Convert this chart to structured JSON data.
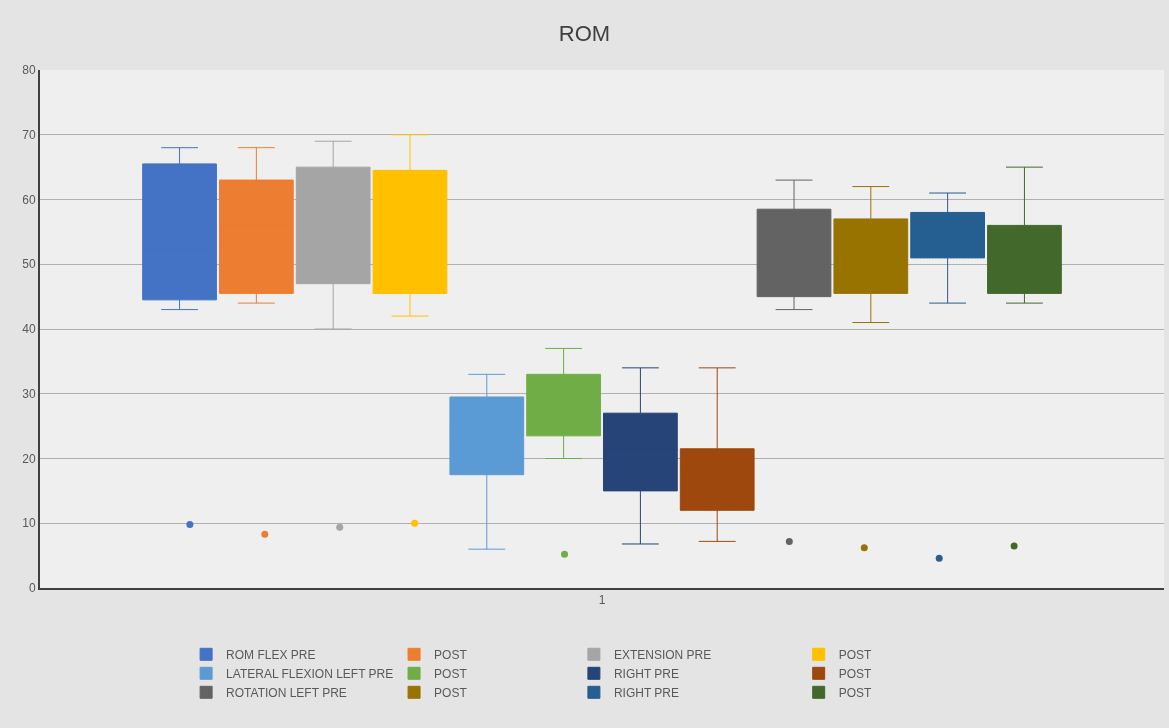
{
  "chart_data": {
    "type": "box",
    "title": "ROM",
    "categories": [
      "1"
    ],
    "ylim": [
      0,
      80
    ],
    "yticks": [
      0,
      10,
      20,
      30,
      40,
      50,
      60,
      70,
      80
    ],
    "grid": "y",
    "legend": "bottom",
    "series": [
      {
        "name": "ROM FLEX PRE",
        "color": "#4472c4",
        "boxes": [
          {
            "low": 43,
            "q1": 44.5,
            "median": 51,
            "q3": 65.5,
            "high": 68,
            "mean": 52.3,
            "outliers": [
              9.8
            ]
          }
        ]
      },
      {
        "name": "POST",
        "color": "#ed7d31",
        "boxes": [
          {
            "low": 44,
            "q1": 45.5,
            "median": 56,
            "q3": 63,
            "high": 68,
            "mean": 53,
            "outliers": [
              8.3
            ]
          }
        ]
      },
      {
        "name": "EXTENSION PRE",
        "color": "#a5a5a5",
        "boxes": [
          {
            "low": 40,
            "q1": 47,
            "median": 54.5,
            "q3": 65,
            "high": 69,
            "mean": 53.7,
            "outliers": [
              9.4
            ]
          }
        ]
      },
      {
        "name": "POST",
        "color": "#ffc000",
        "boxes": [
          {
            "low": 42,
            "q1": 45.5,
            "median": 56.3,
            "q3": 64.5,
            "high": 70,
            "mean": 53.4,
            "outliers": [
              10
            ]
          }
        ]
      },
      {
        "name": "LATERAL FLEXION LEFT PRE",
        "color": "#5b9bd5",
        "boxes": [
          {
            "low": 6,
            "q1": 17.5,
            "median": 24.8,
            "q3": 29.5,
            "high": 33,
            "mean": 23.5
          }
        ]
      },
      {
        "name": "POST",
        "color": "#70ad47",
        "boxes": [
          {
            "low": 20,
            "q1": 23.5,
            "median": 28,
            "q3": 33,
            "high": 37,
            "mean": 27.3,
            "outliers": [
              5.2
            ]
          }
        ]
      },
      {
        "name": "RIGHT PRE",
        "color": "#264478",
        "boxes": [
          {
            "low": 6.8,
            "q1": 15,
            "median": 21.3,
            "q3": 27,
            "high": 34,
            "mean": 21.5
          }
        ]
      },
      {
        "name": "POST",
        "color": "#9e480e",
        "boxes": [
          {
            "low": 7.2,
            "q1": 12,
            "median": 19,
            "q3": 21.5,
            "high": 34,
            "mean": 18
          }
        ]
      },
      {
        "name": "ROTATION LEFT PRE",
        "color": "#636363",
        "boxes": [
          {
            "low": 43,
            "q1": 45,
            "median": 50,
            "q3": 58.5,
            "high": 63,
            "mean": 49.5,
            "outliers": [
              7.2
            ]
          }
        ]
      },
      {
        "name": "POST",
        "color": "#997300",
        "boxes": [
          {
            "low": 41,
            "q1": 45.5,
            "median": 51,
            "q3": 57,
            "high": 62,
            "mean": 49.5,
            "outliers": [
              6.2
            ]
          }
        ]
      },
      {
        "name": "RIGHT PRE",
        "color": "#255e91",
        "boxes": [
          {
            "low": 44,
            "q1": 51,
            "median": 54,
            "q3": 58,
            "high": 61,
            "mean": 51,
            "outliers": [
              4.6
            ]
          }
        ]
      },
      {
        "name": "POST",
        "color": "#43682b",
        "boxes": [
          {
            "low": 44,
            "q1": 45.5,
            "median": 51,
            "q3": 56,
            "high": 65,
            "mean": 49.3,
            "outliers": [
              6.5
            ]
          }
        ]
      }
    ]
  }
}
